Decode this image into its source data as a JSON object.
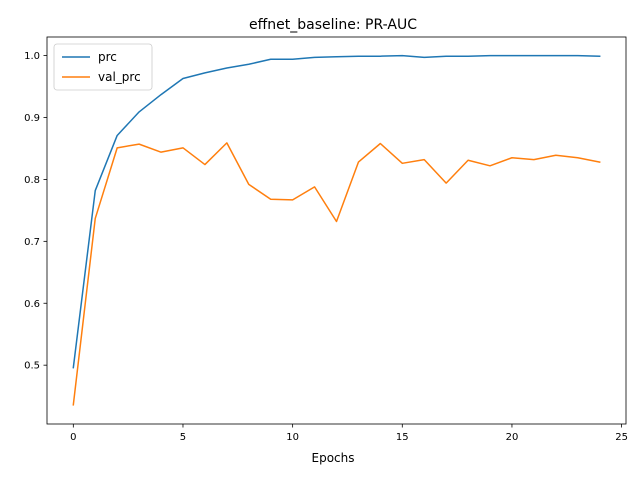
{
  "chart_data": {
    "type": "line",
    "title": "effnet_baseline: PR-AUC",
    "xlabel": "Epochs",
    "ylabel": "",
    "xlim": [
      -1.2,
      25.2
    ],
    "ylim": [
      0.405,
      1.03
    ],
    "xticks": [
      0,
      5,
      10,
      15,
      20,
      25
    ],
    "yticks": [
      0.5,
      0.6,
      0.7,
      0.8,
      0.9,
      1.0
    ],
    "xtick_labels": [
      "0",
      "5",
      "10",
      "15",
      "20",
      "25"
    ],
    "ytick_labels": [
      "0.5",
      "0.6",
      "0.7",
      "0.8",
      "0.9",
      "1.0"
    ],
    "grid": false,
    "legend_position": "top-left",
    "x": [
      0,
      1,
      2,
      3,
      4,
      5,
      6,
      7,
      8,
      9,
      10,
      11,
      12,
      13,
      14,
      15,
      16,
      17,
      18,
      19,
      20,
      21,
      22,
      23,
      24
    ],
    "series": [
      {
        "name": "prc",
        "color": "#1f77b4",
        "values": [
          0.496,
          0.782,
          0.871,
          0.909,
          0.937,
          0.963,
          0.972,
          0.98,
          0.986,
          0.994,
          0.994,
          0.997,
          0.998,
          0.999,
          0.999,
          1.0,
          0.997,
          0.999,
          0.999,
          1.0,
          1.0,
          1.0,
          1.0,
          1.0,
          0.999
        ]
      },
      {
        "name": "val_prc",
        "color": "#ff7f0e",
        "values": [
          0.436,
          0.737,
          0.851,
          0.857,
          0.844,
          0.851,
          0.824,
          0.859,
          0.792,
          0.768,
          0.767,
          0.788,
          0.732,
          0.828,
          0.858,
          0.826,
          0.832,
          0.794,
          0.831,
          0.822,
          0.835,
          0.832,
          0.839,
          0.835,
          0.828
        ]
      }
    ]
  }
}
